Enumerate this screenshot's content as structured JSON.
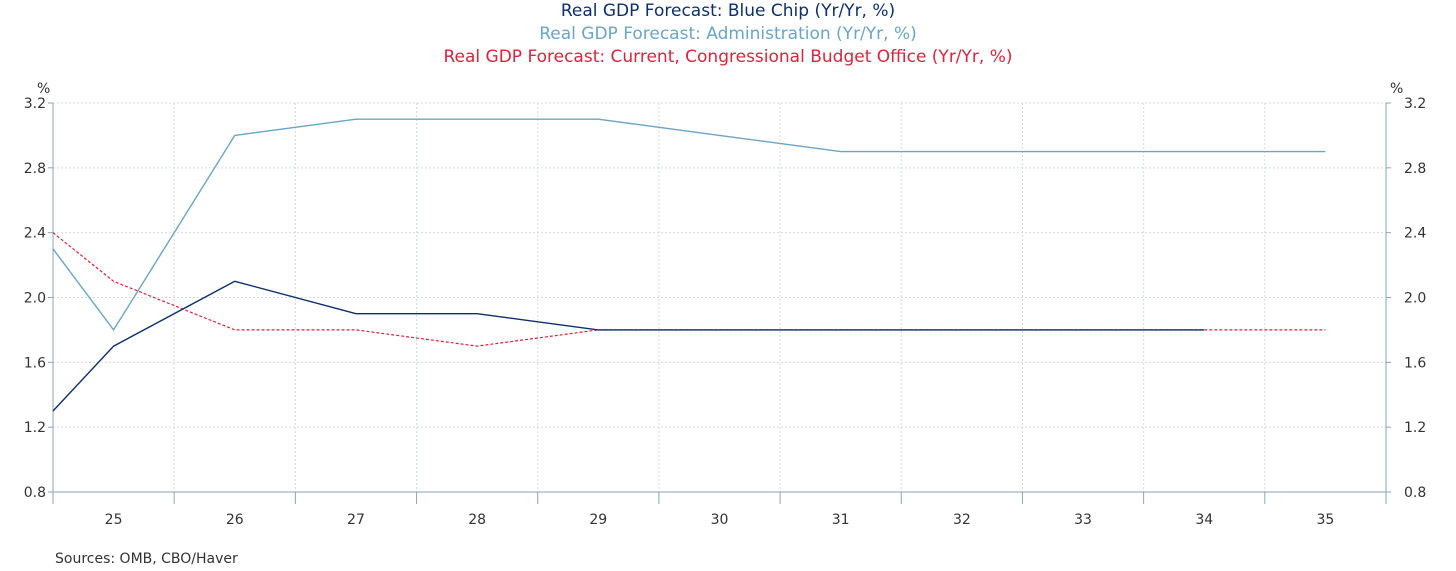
{
  "chart_data": {
    "type": "line",
    "titles": [
      {
        "text": "Real GDP Forecast: Blue Chip (Yr/Yr, %)",
        "color": "#0d2f6b"
      },
      {
        "text": "Real GDP Forecast: Administration (Yr/Yr, %)",
        "color": "#6ba5c4"
      },
      {
        "text": "Real GDP Forecast: Current, Congressional Budget Office (Yr/Yr, %)",
        "color": "#d8243c"
      }
    ],
    "y_unit_left": "%",
    "y_unit_right": "%",
    "ylim": [
      0.8,
      3.2
    ],
    "yticks": [
      0.8,
      1.2,
      1.6,
      2.0,
      2.4,
      2.8,
      3.2
    ],
    "ytick_labels": [
      "0.8",
      "1.2",
      "1.6",
      "2.0",
      "2.4",
      "2.8",
      "3.2"
    ],
    "xlim": [
      2024.5,
      2035.5
    ],
    "x_labels": [
      {
        "x": 2025,
        "label": "25"
      },
      {
        "x": 2026,
        "label": "26"
      },
      {
        "x": 2027,
        "label": "27"
      },
      {
        "x": 2028,
        "label": "28"
      },
      {
        "x": 2029,
        "label": "29"
      },
      {
        "x": 2030,
        "label": "30"
      },
      {
        "x": 2031,
        "label": "31"
      },
      {
        "x": 2032,
        "label": "32"
      },
      {
        "x": 2033,
        "label": "33"
      },
      {
        "x": 2034,
        "label": "34"
      },
      {
        "x": 2035,
        "label": "35"
      }
    ],
    "series": [
      {
        "name": "Real GDP Forecast: Administration (Yr/Yr, %)",
        "color": "#6ba5c4",
        "dashed": false,
        "x": [
          2024.5,
          2025,
          2026,
          2027,
          2028,
          2029,
          2030,
          2031,
          2032,
          2033,
          2034,
          2035
        ],
        "values": [
          2.3,
          1.8,
          3.0,
          3.1,
          3.1,
          3.1,
          3.0,
          2.9,
          2.9,
          2.9,
          2.9,
          2.9
        ]
      },
      {
        "name": "Real GDP Forecast: Current, Congressional Budget Office (Yr/Yr, %)",
        "color": "#d8243c",
        "dashed": true,
        "x": [
          2024.5,
          2025,
          2026,
          2027,
          2028,
          2029,
          2030,
          2031,
          2032,
          2033,
          2034,
          2035
        ],
        "values": [
          2.4,
          2.1,
          1.8,
          1.8,
          1.7,
          1.8,
          1.8,
          1.8,
          1.8,
          1.8,
          1.8,
          1.8
        ]
      },
      {
        "name": "Real GDP Forecast: Blue Chip (Yr/Yr, %)",
        "color": "#0d2f6b",
        "dashed": false,
        "x": [
          2024.5,
          2025,
          2026,
          2027,
          2028,
          2029,
          2030,
          2031,
          2032,
          2033,
          2034
        ],
        "values": [
          1.3,
          1.7,
          2.1,
          1.9,
          1.9,
          1.8,
          1.8,
          1.8,
          1.8,
          1.8,
          1.8
        ]
      }
    ]
  },
  "source": "Sources:  OMB, CBO/Haver"
}
